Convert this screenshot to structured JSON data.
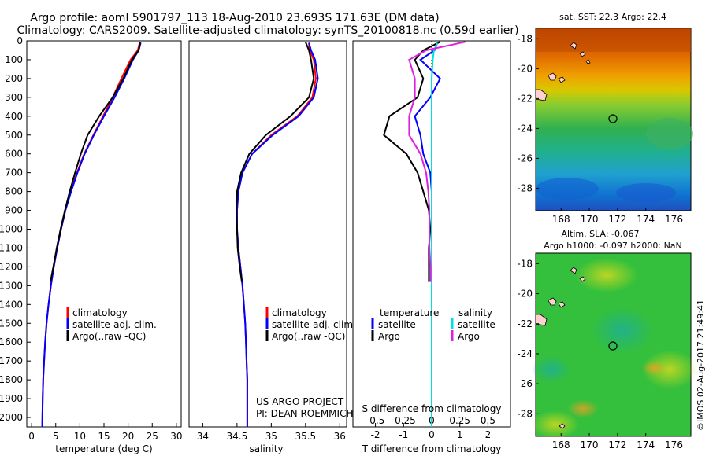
{
  "header": {
    "title_line1": "Argo profile: aoml 5901797_113 18-Aug-2010 23.693S 171.63E (DM data)",
    "title_line2": "Climatology: CARS2009. Satellite-adjusted climatology: synTS_20100818.nc (0.59d earlier)"
  },
  "sst_map": {
    "title": "sat. SST: 22.3 Argo: 22.4",
    "xticks": [
      "168",
      "170",
      "172",
      "174",
      "176"
    ],
    "yticks": [
      "-18",
      "-20",
      "-22",
      "-24",
      "-26",
      "-28"
    ]
  },
  "sla_map": {
    "title_line1": "Altim. SLA: -0.067",
    "title_line2": "Argo h1000: -0.097 h2000: NaN",
    "xticks": [
      "168",
      "170",
      "172",
      "174",
      "176"
    ],
    "yticks": [
      "-18",
      "-20",
      "-22",
      "-24",
      "-26",
      "-28"
    ]
  },
  "credit": "©IMOS 02-Aug-2017 21:49:41",
  "project_line1": "US ARGO PROJECT",
  "project_line2": "PI: DEAN ROEMMICH",
  "legend_profiles": [
    "climatology",
    "satellite-adj. clim.",
    "Argo(..raw -QC)"
  ],
  "legend_diff": {
    "temperature": "temperature",
    "salinity": "salinity",
    "satellite": "satellite",
    "argo": "Argo"
  },
  "colors": {
    "climatology": "#ff0000",
    "satellite": "#0000ff",
    "argo": "#000000",
    "s_sat": "#00e0e0",
    "s_argo": "#e020e0"
  },
  "chart_data": [
    {
      "type": "line",
      "xlabel": "temperature (deg C)",
      "ylabel": "",
      "xlim": [
        -1,
        31
      ],
      "ylim": [
        2050,
        0
      ],
      "xticks": [
        0,
        5,
        10,
        15,
        20,
        25,
        30
      ],
      "yticks": [
        0,
        100,
        200,
        300,
        400,
        500,
        600,
        700,
        800,
        900,
        1000,
        1100,
        1200,
        1300,
        1400,
        1500,
        1600,
        1700,
        1800,
        1900,
        2000
      ],
      "series": [
        {
          "name": "climatology",
          "x": [
            22.4,
            22.0,
            20.5,
            18.6,
            16.8,
            14.8,
            12.8,
            10.9,
            9.4,
            8.1,
            7.0,
            6.1,
            5.3,
            4.6,
            4.0,
            3.5,
            3.1,
            2.8,
            2.6,
            2.4,
            2.3,
            2.2
          ],
          "y": [
            10,
            50,
            100,
            200,
            300,
            400,
            500,
            600,
            700,
            800,
            900,
            1000,
            1100,
            1200,
            1300,
            1400,
            1500,
            1600,
            1700,
            1800,
            1900,
            2050
          ]
        },
        {
          "name": "satellite-adj. clim.",
          "x": [
            22.6,
            22.2,
            21.0,
            19.2,
            17.2,
            15.0,
            12.9,
            11.0,
            9.5,
            8.2,
            7.0,
            6.1,
            5.3,
            4.6,
            4.0,
            3.5,
            3.1,
            2.8,
            2.6,
            2.4,
            2.3,
            2.2
          ],
          "y": [
            10,
            50,
            100,
            200,
            300,
            400,
            500,
            600,
            700,
            800,
            900,
            1000,
            1100,
            1200,
            1300,
            1400,
            1500,
            1600,
            1700,
            1800,
            1900,
            2050
          ]
        },
        {
          "name": "Argo(..raw -QC)",
          "x": [
            22.5,
            22.2,
            20.8,
            19.0,
            16.8,
            14.0,
            11.6,
            10.2,
            9.0,
            7.9,
            6.9,
            6.0,
            5.2,
            4.5,
            3.9
          ],
          "y": [
            5,
            50,
            100,
            200,
            300,
            400,
            500,
            600,
            700,
            800,
            900,
            1000,
            1100,
            1200,
            1280
          ]
        }
      ]
    },
    {
      "type": "line",
      "xlabel": "salinity",
      "ylabel": "",
      "xlim": [
        33.8,
        36.1
      ],
      "ylim": [
        2050,
        0
      ],
      "xticks": [
        34,
        34.5,
        35,
        35.5,
        36
      ],
      "series": [
        {
          "name": "climatology",
          "x": [
            35.55,
            35.56,
            35.62,
            35.65,
            35.6,
            35.38,
            35.0,
            34.72,
            34.58,
            34.52,
            34.5,
            34.5,
            34.52,
            34.55,
            34.58,
            34.6,
            34.62,
            34.63,
            34.64,
            34.65,
            34.65,
            34.65
          ],
          "y": [
            10,
            50,
            100,
            200,
            300,
            400,
            500,
            600,
            700,
            800,
            900,
            1000,
            1100,
            1200,
            1300,
            1400,
            1500,
            1600,
            1700,
            1800,
            1900,
            2050
          ]
        },
        {
          "name": "satellite-adj. clim.",
          "x": [
            35.55,
            35.58,
            35.64,
            35.68,
            35.62,
            35.4,
            35.02,
            34.72,
            34.58,
            34.52,
            34.5,
            34.5,
            34.52,
            34.55,
            34.58,
            34.6,
            34.62,
            34.63,
            34.64,
            34.65,
            34.65,
            34.65
          ],
          "y": [
            10,
            50,
            100,
            200,
            300,
            400,
            500,
            600,
            700,
            800,
            900,
            1000,
            1100,
            1200,
            1300,
            1400,
            1500,
            1600,
            1700,
            1800,
            1900,
            2050
          ]
        },
        {
          "name": "Argo(..raw -QC)",
          "x": [
            35.5,
            35.55,
            35.58,
            35.62,
            35.55,
            35.28,
            34.92,
            34.68,
            34.56,
            34.5,
            34.49,
            34.5,
            34.51,
            34.54,
            34.57
          ],
          "y": [
            5,
            50,
            100,
            200,
            300,
            400,
            500,
            600,
            700,
            800,
            900,
            1000,
            1100,
            1200,
            1280
          ]
        }
      ]
    },
    {
      "type": "line",
      "xlabel": "T difference from climatology",
      "ylabel": "S difference from climatology",
      "xlim": [
        -2.8,
        2.8
      ],
      "ylim": [
        2050,
        0
      ],
      "xticks": [
        -2,
        -1,
        0,
        1,
        2
      ],
      "s_ticks": [
        -0.5,
        -0.25,
        0,
        0.25,
        0.5
      ],
      "series": [
        {
          "name": "temperature satellite",
          "x": [
            0.2,
            0.1,
            -0.4,
            0.3,
            -0.05,
            -0.6,
            -0.4,
            -0.3,
            -0.05,
            0.0,
            0.0,
            0.0,
            0.0,
            0.0,
            0.0,
            0.0,
            0.0,
            0.0,
            0.0,
            0.0,
            0.0,
            0.0
          ],
          "y": [
            10,
            50,
            100,
            200,
            300,
            400,
            500,
            600,
            700,
            800,
            900,
            1000,
            1100,
            1200,
            1300,
            1400,
            1500,
            1600,
            1700,
            1800,
            1900,
            2050
          ]
        },
        {
          "name": "temperature Argo",
          "x": [
            0.3,
            -0.3,
            -0.6,
            -0.3,
            -0.5,
            -1.5,
            -1.7,
            -0.9,
            -0.5,
            -0.3,
            -0.1,
            -0.05,
            -0.1,
            -0.1,
            -0.1
          ],
          "y": [
            5,
            50,
            100,
            200,
            300,
            400,
            500,
            600,
            700,
            800,
            900,
            1000,
            1100,
            1200,
            1280
          ]
        },
        {
          "name": "salinity satellite",
          "x": [
            0.05,
            0.02,
            0.01,
            0.0,
            0.0,
            0.0,
            0.0,
            0.0,
            0.0,
            0.0,
            0.0,
            0.0,
            0.0,
            0.0,
            0.0,
            0.0,
            0.0,
            0.0,
            0.0,
            0.0,
            0.0,
            0.0
          ],
          "y": [
            10,
            50,
            100,
            200,
            300,
            400,
            500,
            600,
            700,
            800,
            900,
            1000,
            1100,
            1200,
            1300,
            1400,
            1500,
            1600,
            1700,
            1800,
            1900,
            2050
          ]
        },
        {
          "name": "salinity Argo",
          "x": [
            0.3,
            -0.05,
            -0.2,
            -0.15,
            -0.15,
            -0.2,
            -0.2,
            -0.1,
            -0.05,
            -0.03,
            -0.02,
            -0.02,
            -0.02,
            -0.01,
            -0.01
          ],
          "y": [
            5,
            50,
            100,
            200,
            300,
            400,
            500,
            600,
            700,
            800,
            900,
            1000,
            1100,
            1200,
            1280
          ]
        }
      ]
    }
  ]
}
